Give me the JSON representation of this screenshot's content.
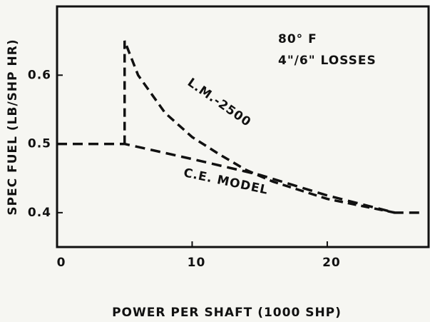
{
  "chart_data": {
    "type": "line",
    "xlabel": "POWER PER SHAFT (1000 SHP)",
    "ylabel": "SPEC FUEL (LB/SHP HR)",
    "annotations": [
      "80° F",
      "4\"/6\" LOSSES"
    ],
    "series": [
      {
        "name": "L.M.-2500",
        "color": "#111111",
        "x": [
          5,
          5,
          6,
          8,
          10,
          12,
          14,
          16,
          20,
          25
        ],
        "values": [
          0.5,
          0.65,
          0.6,
          0.545,
          0.51,
          0.485,
          0.462,
          0.445,
          0.42,
          0.4
        ]
      },
      {
        "name": "C.E. MODEL",
        "color": "#111111",
        "x": [
          0,
          5,
          10,
          15,
          20,
          25,
          27
        ],
        "values": [
          0.5,
          0.5,
          0.478,
          0.455,
          0.425,
          0.4,
          0.4
        ]
      }
    ],
    "xlim": [
      0,
      27.5
    ],
    "xticks": [
      0,
      10,
      20
    ],
    "ylim": [
      0.35,
      0.7
    ],
    "yticks": [
      0.4,
      0.5,
      0.6
    ]
  }
}
